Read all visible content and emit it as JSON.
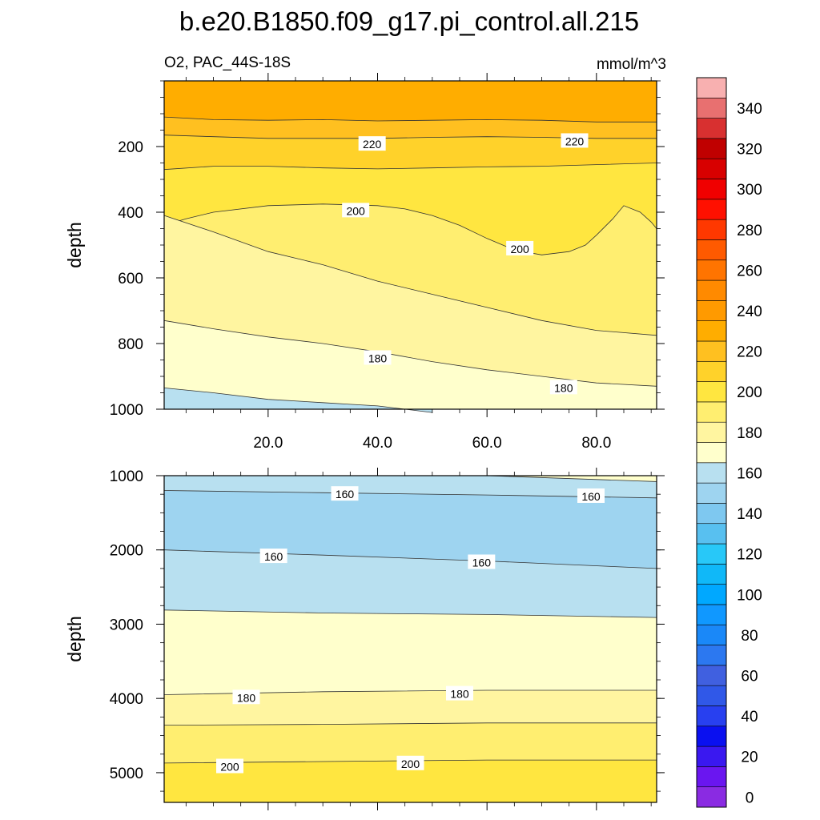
{
  "chart_data": {
    "type": "contour",
    "title": "b.e20.B1850.f09_g17.pi_control.all.215",
    "variable_label": "O2, PAC_44S-18S",
    "units_label": "mmol/m^3",
    "ylabel": "depth",
    "xlim": [
      1,
      91
    ],
    "x_ticks": [
      20,
      40,
      60,
      80
    ],
    "x_tick_labels": [
      "20.0",
      "40.0",
      "60.0",
      "80.0"
    ],
    "panels": [
      {
        "name": "upper",
        "ylim": [
          0,
          1000
        ],
        "y_ticks": [
          200,
          400,
          600,
          800,
          1000
        ],
        "y_tick_labels": [
          "200",
          "400",
          "600",
          "800",
          "1000"
        ],
        "background_level": 230,
        "bands": [
          {
            "level": 220,
            "x": [
              1,
              10,
              20,
              30,
              40,
              50,
              60,
              70,
              80,
              91
            ],
            "depth": [
              110,
              118,
              120,
              118,
              122,
              120,
              118,
              120,
              125,
              125
            ]
          },
          {
            "level": 210,
            "x": [
              1,
              10,
              20,
              30,
              40,
              50,
              60,
              70,
              80,
              91
            ],
            "depth": [
              165,
              170,
              175,
              175,
              175,
              172,
              170,
              172,
              175,
              175
            ]
          },
          {
            "level": 200,
            "x": [
              1,
              10,
              20,
              30,
              40,
              50,
              60,
              70,
              80,
              91
            ],
            "depth": [
              270,
              260,
              260,
              265,
              268,
              265,
              262,
              260,
              255,
              250
            ]
          },
          {
            "level": 190,
            "x": [
              1,
              5,
              10,
              20,
              30,
              40,
              45,
              50,
              55,
              60,
              65,
              70,
              75,
              78,
              80,
              83,
              85,
              88,
              90,
              91
            ],
            "depth": [
              440,
              420,
              400,
              380,
              375,
              380,
              390,
              410,
              440,
              480,
              515,
              530,
              520,
              500,
              470,
              420,
              380,
              400,
              430,
              450
            ]
          },
          {
            "level": 180,
            "x": [
              1,
              10,
              20,
              30,
              40,
              50,
              60,
              70,
              80,
              91
            ],
            "depth": [
              410,
              460,
              520,
              560,
              610,
              650,
              690,
              730,
              760,
              775
            ]
          },
          {
            "level": 170,
            "x": [
              1,
              10,
              20,
              30,
              40,
              50,
              60,
              70,
              80,
              91
            ],
            "depth": [
              730,
              755,
              780,
              800,
              825,
              855,
              880,
              900,
              920,
              930
            ]
          },
          {
            "level": 160,
            "x": [
              1,
              10,
              20,
              30,
              35,
              40,
              45,
              50
            ],
            "depth": [
              935,
              950,
              970,
              980,
              985,
              990,
              1000,
              1010
            ]
          }
        ],
        "contour_labels": [
          {
            "text": "220",
            "x": 39,
            "depth": 193
          },
          {
            "text": "220",
            "x": 76,
            "depth": 184
          },
          {
            "text": "200",
            "x": 36,
            "depth": 396
          },
          {
            "text": "200",
            "x": 66,
            "depth": 512
          },
          {
            "text": "180",
            "x": 40,
            "depth": 845
          },
          {
            "text": "180",
            "x": 74,
            "depth": 935
          }
        ]
      },
      {
        "name": "lower",
        "ylim": [
          1000,
          5400
        ],
        "y_ticks": [
          1000,
          2000,
          3000,
          4000,
          5000
        ],
        "y_tick_labels": [
          "1000",
          "2000",
          "3000",
          "4000",
          "5000"
        ],
        "background_level": 160,
        "bands": [
          {
            "level": 150,
            "x": [
              1,
              30,
              60,
              91
            ],
            "depth": [
              1200,
              1230,
              1260,
              1300
            ]
          },
          {
            "level": 160,
            "x": [
              1,
              30,
              60,
              91
            ],
            "depth": [
              2000,
              2070,
              2150,
              2250
            ]
          },
          {
            "level": 170,
            "x": [
              1,
              30,
              60,
              91
            ],
            "depth": [
              2810,
              2850,
              2870,
              2910
            ]
          },
          {
            "level": 180,
            "x": [
              1,
              30,
              60,
              91
            ],
            "depth": [
              3950,
              3910,
              3890,
              3890
            ]
          },
          {
            "level": 190,
            "x": [
              1,
              30,
              60,
              91
            ],
            "depth": [
              4360,
              4350,
              4330,
              4330
            ]
          },
          {
            "level": 200,
            "x": [
              1,
              30,
              60,
              91
            ],
            "depth": [
              4870,
              4850,
              4830,
              4830
            ]
          }
        ],
        "top_right_patch": {
          "level": 170,
          "x": [
            60,
            91
          ],
          "depth": [
            1000,
            1080
          ]
        },
        "contour_labels": [
          {
            "text": "160",
            "x": 34,
            "depth": 1250
          },
          {
            "text": "160",
            "x": 79,
            "depth": 1280
          },
          {
            "text": "160",
            "x": 21,
            "depth": 2090
          },
          {
            "text": "160",
            "x": 59,
            "depth": 2170
          },
          {
            "text": "180",
            "x": 16,
            "depth": 3990
          },
          {
            "text": "180",
            "x": 55,
            "depth": 3940
          },
          {
            "text": "200",
            "x": 13,
            "depth": 4920
          },
          {
            "text": "200",
            "x": 46,
            "depth": 4880
          }
        ]
      }
    ],
    "colorbar": {
      "levels": [
        0,
        10,
        20,
        30,
        40,
        50,
        60,
        70,
        80,
        90,
        100,
        110,
        120,
        130,
        140,
        150,
        160,
        170,
        180,
        190,
        200,
        210,
        220,
        230,
        240,
        250,
        260,
        270,
        280,
        290,
        300,
        310,
        320,
        330,
        340,
        350
      ],
      "colors": [
        "#8a2be2",
        "#6a16f0",
        "#3a18f0",
        "#0a10f0",
        "#2840f0",
        "#3058e8",
        "#4060e0",
        "#2c78f0",
        "#1a88f8",
        "#1098ff",
        "#00a8ff",
        "#10b8f8",
        "#28c8f8",
        "#58c0f0",
        "#7ec8f0",
        "#9ed4f0",
        "#b8e0f0",
        "#ffffcc",
        "#fff5a0",
        "#ffee70",
        "#ffe640",
        "#ffd22a",
        "#ffc020",
        "#ffad00",
        "#ff9a00",
        "#ff8a00",
        "#ff7400",
        "#ff5a00",
        "#ff3800",
        "#ff1000",
        "#f00000",
        "#d80000",
        "#c00000",
        "#d83030",
        "#e87070",
        "#f8b0b0"
      ],
      "tick_labels": [
        "0",
        "20",
        "40",
        "60",
        "80",
        "100",
        "120",
        "140",
        "160",
        "180",
        "200",
        "220",
        "240",
        "260",
        "280",
        "300",
        "320",
        "340"
      ]
    }
  }
}
